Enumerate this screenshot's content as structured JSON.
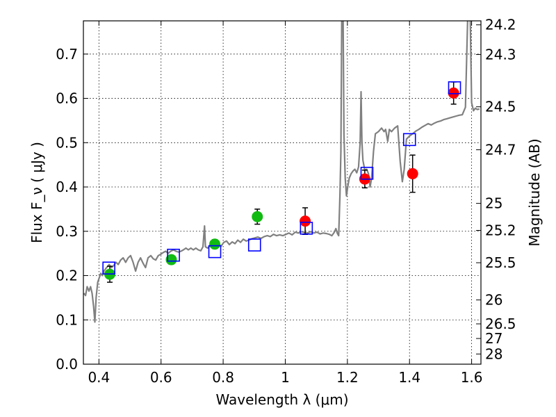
{
  "chart_data": {
    "type": "scatter",
    "title": "",
    "xlabel": "Wavelength  λ (μm)",
    "ylabel": "Flux  F_ν  ( μJy )",
    "ylabel_right": "Magnitude (AB)",
    "xlim": [
      0.35,
      1.63
    ],
    "ylim": [
      0.0,
      0.775
    ],
    "x_ticks": [
      0.4,
      0.6,
      0.8,
      1.0,
      1.2,
      1.4,
      1.6
    ],
    "x_tick_labels": [
      "0.4",
      "0.6",
      "0.8",
      "1",
      "1.2",
      "1.4",
      "1.6"
    ],
    "y_ticks": [
      0.0,
      0.1,
      0.2,
      0.3,
      0.4,
      0.5,
      0.6,
      0.7
    ],
    "y_tick_labels": [
      "0.0",
      "0.1",
      "0.2",
      "0.3",
      "0.4",
      "0.5",
      "0.6",
      "0.7"
    ],
    "right_axis_ticks": [
      {
        "label": "24.2",
        "flux": 0.766
      },
      {
        "label": "24.3",
        "flux": 0.699
      },
      {
        "label": "24.5",
        "flux": 0.581
      },
      {
        "label": "24.7",
        "flux": 0.484
      },
      {
        "label": "25",
        "flux": 0.363
      },
      {
        "label": "25.2",
        "flux": 0.302
      },
      {
        "label": "25.5",
        "flux": 0.229
      },
      {
        "label": "26",
        "flux": 0.145
      },
      {
        "label": "26.5",
        "flux": 0.091
      },
      {
        "label": "27",
        "flux": 0.058
      },
      {
        "label": "28",
        "flux": 0.023
      }
    ],
    "grid": true,
    "colors": {
      "spectrum": "#808080",
      "green_points": "#11bb11",
      "red_points": "#ff0000",
      "model_boxes": "#0000ff",
      "errorbars": "#000000"
    },
    "series": [
      {
        "kind": "line",
        "points": [
          [
            0.352,
            0.16
          ],
          [
            0.357,
            0.155
          ],
          [
            0.362,
            0.175
          ],
          [
            0.368,
            0.165
          ],
          [
            0.373,
            0.175
          ],
          [
            0.378,
            0.16
          ],
          [
            0.383,
            0.13
          ],
          [
            0.387,
            0.095
          ],
          [
            0.391,
            0.15
          ],
          [
            0.396,
            0.185
          ],
          [
            0.401,
            0.195
          ],
          [
            0.406,
            0.205
          ],
          [
            0.411,
            0.2
          ],
          [
            0.416,
            0.21
          ],
          [
            0.421,
            0.215
          ],
          [
            0.427,
            0.22
          ],
          [
            0.433,
            0.225
          ],
          [
            0.44,
            0.218
          ],
          [
            0.447,
            0.222
          ],
          [
            0.455,
            0.23
          ],
          [
            0.462,
            0.225
          ],
          [
            0.47,
            0.235
          ],
          [
            0.478,
            0.24
          ],
          [
            0.486,
            0.23
          ],
          [
            0.494,
            0.24
          ],
          [
            0.502,
            0.245
          ],
          [
            0.51,
            0.23
          ],
          [
            0.518,
            0.21
          ],
          [
            0.526,
            0.23
          ],
          [
            0.534,
            0.24
          ],
          [
            0.542,
            0.228
          ],
          [
            0.55,
            0.218
          ],
          [
            0.558,
            0.24
          ],
          [
            0.567,
            0.245
          ],
          [
            0.575,
            0.238
          ],
          [
            0.583,
            0.235
          ],
          [
            0.591,
            0.245
          ],
          [
            0.599,
            0.248
          ],
          [
            0.607,
            0.252
          ],
          [
            0.615,
            0.255
          ],
          [
            0.623,
            0.25
          ],
          [
            0.631,
            0.255
          ],
          [
            0.64,
            0.258
          ],
          [
            0.648,
            0.255
          ],
          [
            0.656,
            0.253
          ],
          [
            0.664,
            0.255
          ],
          [
            0.672,
            0.258
          ],
          [
            0.68,
            0.262
          ],
          [
            0.688,
            0.258
          ],
          [
            0.696,
            0.262
          ],
          [
            0.704,
            0.258
          ],
          [
            0.712,
            0.262
          ],
          [
            0.72,
            0.258
          ],
          [
            0.728,
            0.256
          ],
          [
            0.735,
            0.265
          ],
          [
            0.74,
            0.312
          ],
          [
            0.743,
            0.265
          ],
          [
            0.75,
            0.262
          ],
          [
            0.758,
            0.268
          ],
          [
            0.766,
            0.275
          ],
          [
            0.775,
            0.27
          ],
          [
            0.784,
            0.273
          ],
          [
            0.793,
            0.266
          ],
          [
            0.802,
            0.275
          ],
          [
            0.811,
            0.278
          ],
          [
            0.82,
            0.27
          ],
          [
            0.829,
            0.276
          ],
          [
            0.838,
            0.272
          ],
          [
            0.847,
            0.28
          ],
          [
            0.856,
            0.275
          ],
          [
            0.865,
            0.282
          ],
          [
            0.874,
            0.278
          ],
          [
            0.883,
            0.28
          ],
          [
            0.892,
            0.283
          ],
          [
            0.902,
            0.285
          ],
          [
            0.912,
            0.287
          ],
          [
            0.922,
            0.284
          ],
          [
            0.932,
            0.288
          ],
          [
            0.942,
            0.29
          ],
          [
            0.952,
            0.288
          ],
          [
            0.962,
            0.293
          ],
          [
            0.972,
            0.29
          ],
          [
            0.982,
            0.292
          ],
          [
            0.992,
            0.29
          ],
          [
            1.002,
            0.293
          ],
          [
            1.012,
            0.296
          ],
          [
            1.022,
            0.292
          ],
          [
            1.032,
            0.298
          ],
          [
            1.042,
            0.296
          ],
          [
            1.052,
            0.299
          ],
          [
            1.062,
            0.297
          ],
          [
            1.072,
            0.296
          ],
          [
            1.082,
            0.299
          ],
          [
            1.092,
            0.296
          ],
          [
            1.102,
            0.298
          ],
          [
            1.112,
            0.294
          ],
          [
            1.122,
            0.296
          ],
          [
            1.132,
            0.295
          ],
          [
            1.142,
            0.293
          ],
          [
            1.15,
            0.29
          ],
          [
            1.158,
            0.298
          ],
          [
            1.163,
            0.306
          ],
          [
            1.168,
            0.295
          ],
          [
            1.172,
            0.29
          ],
          [
            1.176,
            0.38
          ],
          [
            1.179,
            0.48
          ],
          [
            1.182,
            0.8
          ],
          [
            1.186,
            0.8
          ],
          [
            1.189,
            0.52
          ],
          [
            1.193,
            0.42
          ],
          [
            1.197,
            0.38
          ],
          [
            1.201,
            0.4
          ],
          [
            1.206,
            0.42
          ],
          [
            1.212,
            0.43
          ],
          [
            1.218,
            0.436
          ],
          [
            1.224,
            0.44
          ],
          [
            1.23,
            0.432
          ],
          [
            1.236,
            0.445
          ],
          [
            1.241,
            0.5
          ],
          [
            1.244,
            0.615
          ],
          [
            1.247,
            0.5
          ],
          [
            1.25,
            0.46
          ],
          [
            1.256,
            0.438
          ],
          [
            1.262,
            0.44
          ],
          [
            1.268,
            0.43
          ],
          [
            1.273,
            0.4
          ],
          [
            1.278,
            0.42
          ],
          [
            1.284,
            0.48
          ],
          [
            1.29,
            0.52
          ],
          [
            1.3,
            0.525
          ],
          [
            1.31,
            0.533
          ],
          [
            1.318,
            0.525
          ],
          [
            1.323,
            0.53
          ],
          [
            1.33,
            0.503
          ],
          [
            1.335,
            0.53
          ],
          [
            1.342,
            0.525
          ],
          [
            1.352,
            0.533
          ],
          [
            1.362,
            0.538
          ],
          [
            1.37,
            0.458
          ],
          [
            1.377,
            0.412
          ],
          [
            1.383,
            0.44
          ],
          [
            1.39,
            0.508
          ],
          [
            1.4,
            0.515
          ],
          [
            1.41,
            0.52
          ],
          [
            1.42,
            0.526
          ],
          [
            1.43,
            0.53
          ],
          [
            1.44,
            0.535
          ],
          [
            1.45,
            0.539
          ],
          [
            1.46,
            0.543
          ],
          [
            1.47,
            0.54
          ],
          [
            1.48,
            0.544
          ],
          [
            1.49,
            0.547
          ],
          [
            1.5,
            0.549
          ],
          [
            1.51,
            0.552
          ],
          [
            1.52,
            0.554
          ],
          [
            1.53,
            0.556
          ],
          [
            1.54,
            0.558
          ],
          [
            1.55,
            0.56
          ],
          [
            1.56,
            0.562
          ],
          [
            1.57,
            0.563
          ],
          [
            1.58,
            0.58
          ],
          [
            1.588,
            0.8
          ],
          [
            1.595,
            0.8
          ],
          [
            1.6,
            0.59
          ],
          [
            1.606,
            0.572
          ],
          [
            1.612,
            0.578
          ],
          [
            1.618,
            0.575
          ],
          [
            1.625,
            0.576
          ]
        ]
      },
      {
        "kind": "points_green",
        "points": [
          {
            "x": 0.435,
            "y": 0.203,
            "err": 0.018
          },
          {
            "x": 0.633,
            "y": 0.236,
            "err": 0.01
          },
          {
            "x": 0.773,
            "y": 0.271,
            "err": 0.01
          },
          {
            "x": 0.91,
            "y": 0.333,
            "err": 0.017
          }
        ]
      },
      {
        "kind": "points_red",
        "points": [
          {
            "x": 1.064,
            "y": 0.323,
            "err": 0.03
          },
          {
            "x": 1.256,
            "y": 0.418,
            "err": 0.02
          },
          {
            "x": 1.41,
            "y": 0.43,
            "err": 0.042
          },
          {
            "x": 1.542,
            "y": 0.612,
            "err": 0.025
          }
        ]
      },
      {
        "kind": "model_boxes",
        "points": [
          {
            "x": 0.432,
            "y": 0.217
          },
          {
            "x": 0.64,
            "y": 0.246
          },
          {
            "x": 0.773,
            "y": 0.254
          },
          {
            "x": 0.901,
            "y": 0.269
          },
          {
            "x": 1.068,
            "y": 0.307
          },
          {
            "x": 1.263,
            "y": 0.431
          },
          {
            "x": 1.4,
            "y": 0.507
          },
          {
            "x": 1.545,
            "y": 0.624
          }
        ]
      }
    ]
  }
}
